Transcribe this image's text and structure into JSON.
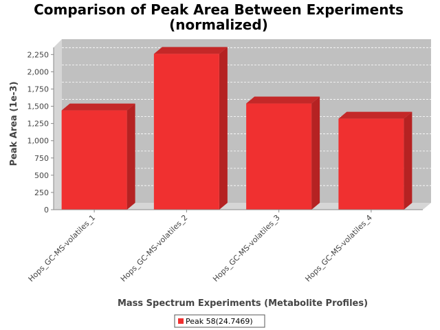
{
  "chart_data": {
    "type": "bar",
    "title": "Comparison of Peak Area Between Experiments",
    "subtitle": "(normalized)",
    "xlabel": "Mass Spectrum Experiments (Metabolite Profiles)",
    "ylabel": "Peak Area (1e-3)",
    "categories": [
      "Hops_GC-MS-volatiles_1",
      "Hops_GC-MS-volatiles_2",
      "Hops_GC-MS-volatiles_3",
      "Hops_GC-MS-volatiles_4"
    ],
    "series": [
      {
        "name": "Peak 58(24.7469)",
        "values": [
          1440,
          2260,
          1540,
          1320
        ],
        "color": "#f03030"
      }
    ],
    "ylim": [
      0,
      2350
    ],
    "yticks": [
      {
        "value": 0,
        "label": "0"
      },
      {
        "value": 250,
        "label": "250"
      },
      {
        "value": 500,
        "label": "500"
      },
      {
        "value": 750,
        "label": "750"
      },
      {
        "value": 1000,
        "label": "1,000"
      },
      {
        "value": 1250,
        "label": "1,250"
      },
      {
        "value": 1500,
        "label": "1,500"
      },
      {
        "value": 1750,
        "label": "1,750"
      },
      {
        "value": 2000,
        "label": "2,000"
      },
      {
        "value": 2250,
        "label": "2,250"
      }
    ],
    "grid": true,
    "legend_position": "bottom",
    "plot_background": "#c0c0c0",
    "style": "3d"
  }
}
